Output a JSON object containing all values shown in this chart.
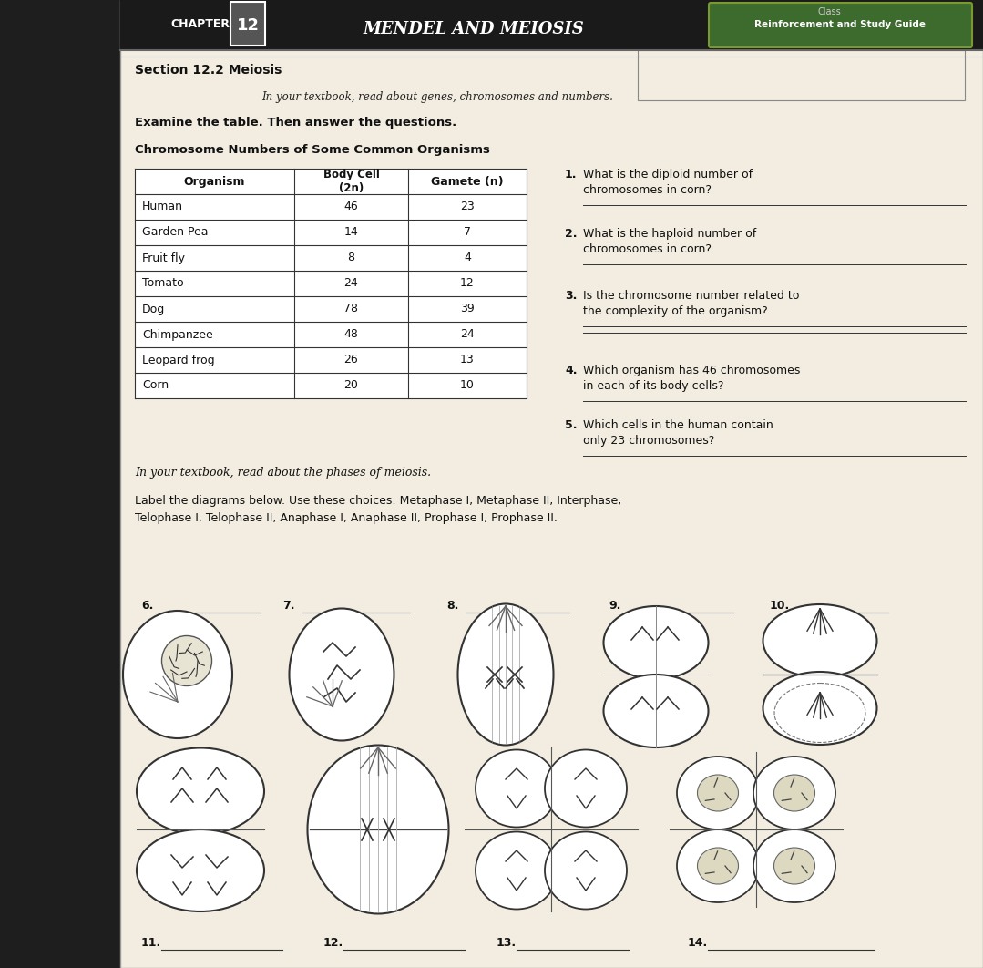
{
  "title_chapter": "CHAPTER",
  "title_num": "12",
  "title_main": "MENDEL AND MEIOSIS",
  "title_right": "Reinforcement and Study Guide",
  "title_class": "Class",
  "section": "Section 12.2 Meiosis",
  "italic_line1": "In your textbook, read about genes, chromosomes and numbers.",
  "bold_line": "Examine the table. Then answer the questions.",
  "table_title": "Chromosome Numbers of Some Common Organisms",
  "table_headers": [
    "Organism",
    "Body Cell\n(2n)",
    "Gamete (n)"
  ],
  "table_data": [
    [
      "Human",
      "46",
      "23"
    ],
    [
      "Garden Pea",
      "14",
      "7"
    ],
    [
      "Fruit fly",
      "8",
      "4"
    ],
    [
      "Tomato",
      "24",
      "12"
    ],
    [
      "Dog",
      "78",
      "39"
    ],
    [
      "Chimpanzee",
      "48",
      "24"
    ],
    [
      "Leopard frog",
      "26",
      "13"
    ],
    [
      "Corn",
      "20",
      "10"
    ]
  ],
  "italic_line2": "In your textbook, read about the phases of meiosis.",
  "label_instruction_1": "Label the diagrams below. Use these choices: Metaphase I, Metaphase II, Interphase,",
  "label_instruction_2": "Telophase I, Telophase II, Anaphase I, Anaphase II, Prophase I, Prophase II.",
  "diagram_labels_top": [
    "6.",
    "7.",
    "8.",
    "9.",
    "10."
  ],
  "diagram_labels_bottom": [
    "11.",
    "12.",
    "13.",
    "14."
  ],
  "paper_color": "#f2ede0",
  "dark_bg": "#1e1e1e",
  "header_dark": "#1a1a1a",
  "line_color": "#333333",
  "table_bg": "#ffffff"
}
